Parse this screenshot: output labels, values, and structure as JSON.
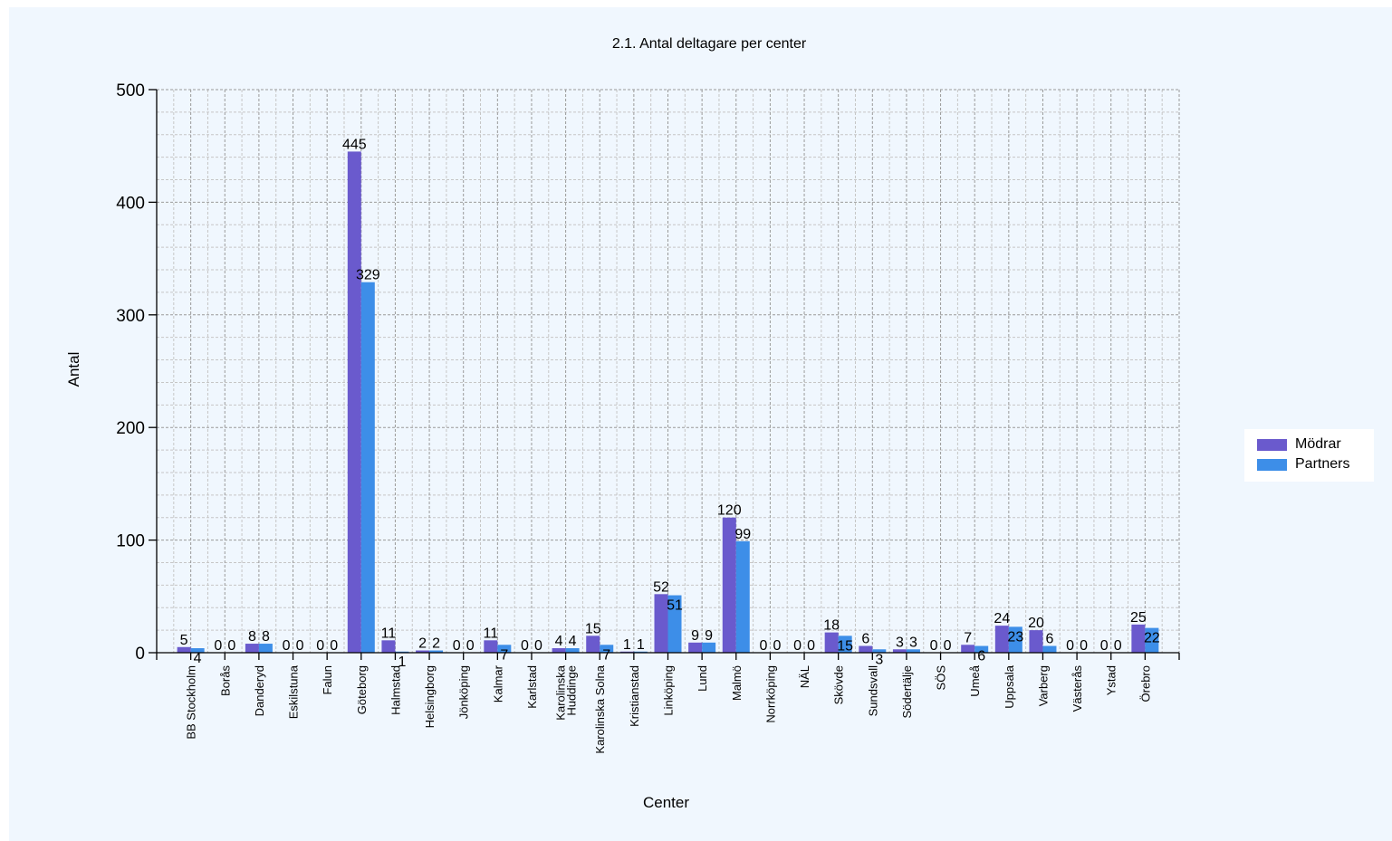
{
  "chart_data": {
    "type": "bar",
    "title": "2.1. Antal deltagare per center",
    "xlabel": "Center",
    "ylabel": "Antal",
    "ylim": [
      0,
      500
    ],
    "yticks": [
      "0",
      "100",
      "200",
      "300",
      "400",
      "500"
    ],
    "grid": true,
    "legend_position": "right",
    "categories": [
      "BB Stockholm",
      "Borås",
      "Danderyd",
      "Eskilstuna",
      "Falun",
      "Göteborg",
      "Halmstad",
      "Helsingborg",
      "Jönköping",
      "Kalmar",
      "Karlstad",
      "Karolinska Huddinge",
      "Karolinska Solna",
      "Kristianstad",
      "Linköping",
      "Lund",
      "Malmö",
      "Norrköping",
      "NÄL",
      "Skövde",
      "Sundsvall",
      "Södertälje",
      "SÖS",
      "Umeå",
      "Uppsala",
      "Varberg",
      "Västerås",
      "Ystad",
      "Örebro"
    ],
    "series": [
      {
        "name": "Mödrar",
        "color": "#6a5acd",
        "values": [
          5,
          0,
          8,
          0,
          0,
          445,
          11,
          2,
          0,
          11,
          0,
          4,
          15,
          1,
          52,
          9,
          120,
          0,
          0,
          18,
          6,
          3,
          0,
          7,
          24,
          20,
          0,
          0,
          25
        ]
      },
      {
        "name": "Partners",
        "color": "#3d8ee8",
        "values": [
          4,
          0,
          8,
          0,
          0,
          329,
          1,
          2,
          0,
          7,
          0,
          4,
          7,
          1,
          51,
          9,
          99,
          0,
          0,
          15,
          3,
          3,
          0,
          6,
          23,
          6,
          0,
          0,
          22
        ]
      }
    ]
  }
}
